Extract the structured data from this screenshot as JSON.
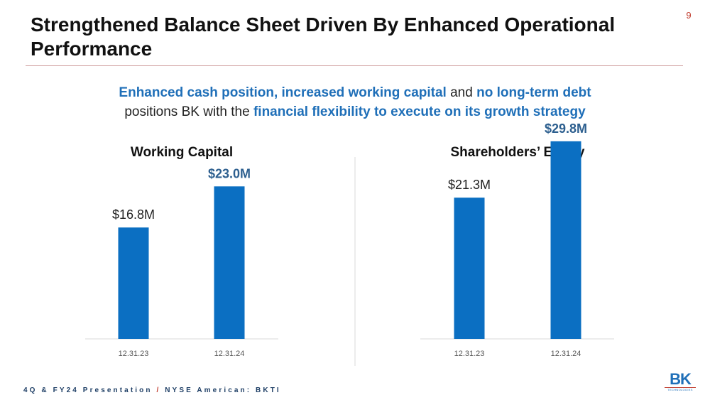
{
  "page_number": "9",
  "title": "Strengthened Balance Sheet Driven By Enhanced Operational Performance",
  "subtitle": {
    "line1_part1": "Enhanced cash position, increased working capital",
    "line1_part2": " and ",
    "line1_part3": "no long-term debt",
    "line2_part1": "positions BK with the ",
    "line2_part2": "financial flexibility to execute on its growth strategy"
  },
  "chart_data": [
    {
      "type": "bar",
      "title": "Working Capital",
      "categories": [
        "12.31.23",
        "12.31.24"
      ],
      "values": [
        16.8,
        23.0
      ],
      "labels": [
        "$16.8M",
        "$23.0M"
      ],
      "unit": "$M",
      "ylim": [
        0,
        30
      ],
      "xlabel": "",
      "ylabel": "",
      "grid": false
    },
    {
      "type": "bar",
      "title": "Shareholders’ Equity",
      "categories": [
        "12.31.23",
        "12.31.24"
      ],
      "values": [
        21.3,
        29.8
      ],
      "labels": [
        "$21.3M",
        "$29.8M"
      ],
      "unit": "$M",
      "ylim": [
        0,
        30
      ],
      "xlabel": "",
      "ylabel": "",
      "grid": false
    }
  ],
  "colors": {
    "bar": "#0b6fc2",
    "highlight_label": "#2d5f8f",
    "accent_red": "#c0392b"
  },
  "footer": {
    "part1": "4Q & FY24 Presentation ",
    "separator": "/",
    "part2": " NYSE American: BKTI"
  },
  "logo": {
    "mark": "BK",
    "sub": "TECHNOLOGIES"
  }
}
